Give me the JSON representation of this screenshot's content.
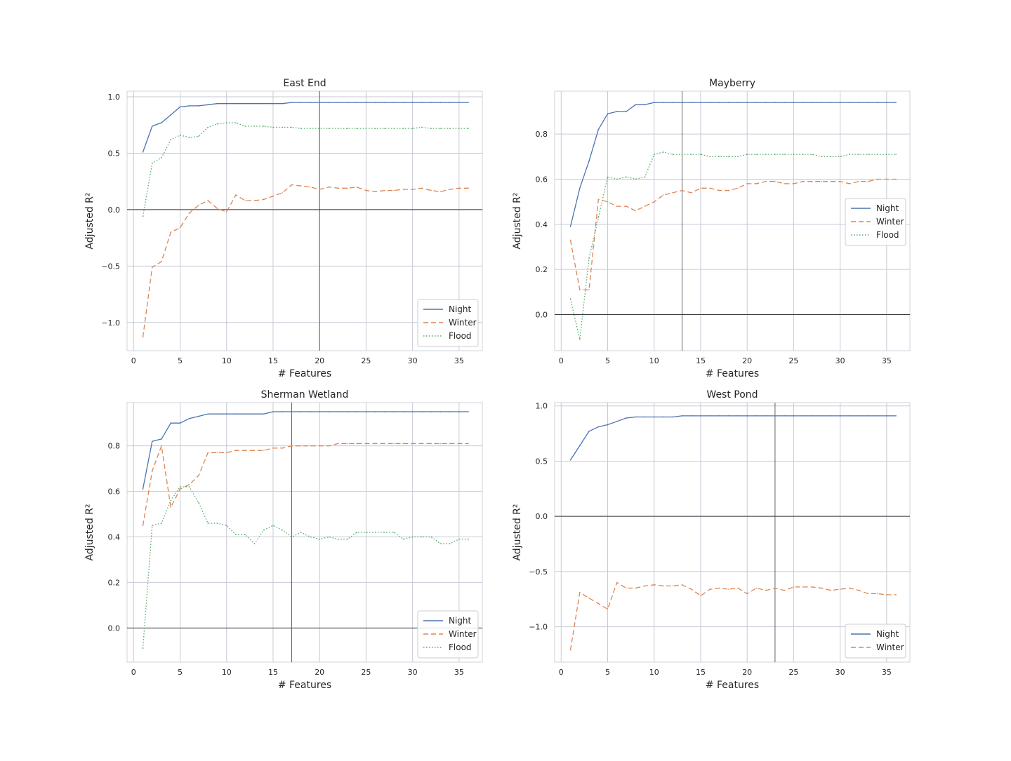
{
  "figure": {
    "axis_x_label": "# Features",
    "axis_y_label_main": "Adjusted R",
    "axis_y_label_sup": "2"
  },
  "colors": {
    "Night": "#4c72b0",
    "Winter": "#dd8452",
    "Flood": "#55a868",
    "grid": "#c7cad6",
    "zero_line": "#3a3a3a",
    "vline": "#3a3a3a",
    "frame": "#d0d3de"
  },
  "chart_data": [
    {
      "type": "line",
      "title": "East End",
      "xlabel": "# Features",
      "ylabel": "Adjusted R²",
      "xlim": [
        -0.7,
        37.5
      ],
      "ylim": [
        -1.25,
        1.05
      ],
      "xticks": [
        0,
        5,
        10,
        15,
        20,
        25,
        30,
        35
      ],
      "yticks": [
        -1.0,
        -0.5,
        0.0,
        0.5,
        1.0
      ],
      "ytick_labels": [
        "−1.0",
        "−0.5",
        "0.0",
        "0.5",
        "1.0"
      ],
      "grid": true,
      "hline": 0,
      "vline": 20,
      "legend_position": "lower-right",
      "x": [
        1,
        2,
        3,
        4,
        5,
        6,
        7,
        8,
        9,
        10,
        11,
        12,
        13,
        14,
        15,
        16,
        17,
        18,
        19,
        20,
        21,
        22,
        23,
        24,
        25,
        26,
        27,
        28,
        29,
        30,
        31,
        32,
        33,
        34,
        35,
        36
      ],
      "series": [
        {
          "name": "Night",
          "style": "solid",
          "values": [
            0.51,
            0.74,
            0.77,
            0.84,
            0.91,
            0.92,
            0.92,
            0.93,
            0.94,
            0.94,
            0.94,
            0.94,
            0.94,
            0.94,
            0.94,
            0.94,
            0.95,
            0.95,
            0.95,
            0.95,
            0.95,
            0.95,
            0.95,
            0.95,
            0.95,
            0.95,
            0.95,
            0.95,
            0.95,
            0.95,
            0.95,
            0.95,
            0.95,
            0.95,
            0.95,
            0.95
          ]
        },
        {
          "name": "Winter",
          "style": "dashed",
          "values": [
            -1.13,
            -0.51,
            -0.46,
            -0.2,
            -0.16,
            -0.03,
            0.04,
            0.08,
            0.01,
            -0.02,
            0.13,
            0.08,
            0.08,
            0.09,
            0.12,
            0.15,
            0.22,
            0.21,
            0.2,
            0.18,
            0.2,
            0.19,
            0.19,
            0.2,
            0.17,
            0.16,
            0.17,
            0.17,
            0.18,
            0.18,
            0.19,
            0.17,
            0.16,
            0.18,
            0.19,
            0.19
          ]
        },
        {
          "name": "Flood",
          "style": "dotted",
          "values": [
            -0.06,
            0.41,
            0.46,
            0.62,
            0.66,
            0.64,
            0.65,
            0.73,
            0.76,
            0.77,
            0.77,
            0.74,
            0.74,
            0.74,
            0.73,
            0.73,
            0.73,
            0.72,
            0.72,
            0.72,
            0.72,
            0.72,
            0.72,
            0.72,
            0.72,
            0.72,
            0.72,
            0.72,
            0.72,
            0.72,
            0.73,
            0.72,
            0.72,
            0.72,
            0.72,
            0.72
          ]
        }
      ]
    },
    {
      "type": "line",
      "title": "Mayberry",
      "xlabel": "# Features",
      "ylabel": "Adjusted R²",
      "xlim": [
        -0.7,
        37.5
      ],
      "ylim": [
        -0.16,
        0.99
      ],
      "xticks": [
        0,
        5,
        10,
        15,
        20,
        25,
        30,
        35
      ],
      "yticks": [
        0.0,
        0.2,
        0.4,
        0.6,
        0.8
      ],
      "ytick_labels": [
        "0.0",
        "0.2",
        "0.4",
        "0.6",
        "0.8"
      ],
      "grid": true,
      "hline": 0,
      "vline": 13,
      "legend_position": "center-right",
      "x": [
        1,
        2,
        3,
        4,
        5,
        6,
        7,
        8,
        9,
        10,
        11,
        12,
        13,
        14,
        15,
        16,
        17,
        18,
        19,
        20,
        21,
        22,
        23,
        24,
        25,
        26,
        27,
        28,
        29,
        30,
        31,
        32,
        33,
        34,
        35,
        36
      ],
      "series": [
        {
          "name": "Night",
          "style": "solid",
          "values": [
            0.39,
            0.56,
            0.68,
            0.82,
            0.89,
            0.9,
            0.9,
            0.93,
            0.93,
            0.94,
            0.94,
            0.94,
            0.94,
            0.94,
            0.94,
            0.94,
            0.94,
            0.94,
            0.94,
            0.94,
            0.94,
            0.94,
            0.94,
            0.94,
            0.94,
            0.94,
            0.94,
            0.94,
            0.94,
            0.94,
            0.94,
            0.94,
            0.94,
            0.94,
            0.94,
            0.94
          ]
        },
        {
          "name": "Winter",
          "style": "dashed",
          "values": [
            0.33,
            0.11,
            0.11,
            0.51,
            0.5,
            0.48,
            0.48,
            0.46,
            0.48,
            0.5,
            0.53,
            0.54,
            0.55,
            0.54,
            0.56,
            0.56,
            0.55,
            0.55,
            0.56,
            0.58,
            0.58,
            0.59,
            0.59,
            0.58,
            0.58,
            0.59,
            0.59,
            0.59,
            0.59,
            0.59,
            0.58,
            0.59,
            0.59,
            0.6,
            0.6,
            0.6
          ]
        },
        {
          "name": "Flood",
          "style": "dotted",
          "values": [
            0.07,
            -0.11,
            0.25,
            0.43,
            0.61,
            0.6,
            0.61,
            0.6,
            0.61,
            0.71,
            0.72,
            0.71,
            0.71,
            0.71,
            0.71,
            0.7,
            0.7,
            0.7,
            0.7,
            0.71,
            0.71,
            0.71,
            0.71,
            0.71,
            0.71,
            0.71,
            0.71,
            0.7,
            0.7,
            0.7,
            0.71,
            0.71,
            0.71,
            0.71,
            0.71,
            0.71
          ]
        }
      ]
    },
    {
      "type": "line",
      "title": "Sherman Wetland",
      "xlabel": "# Features",
      "ylabel": "Adjusted R²",
      "xlim": [
        -0.7,
        37.5
      ],
      "ylim": [
        -0.15,
        0.99
      ],
      "xticks": [
        0,
        5,
        10,
        15,
        20,
        25,
        30,
        35
      ],
      "yticks": [
        0.0,
        0.2,
        0.4,
        0.6,
        0.8
      ],
      "ytick_labels": [
        "0.0",
        "0.2",
        "0.4",
        "0.6",
        "0.8"
      ],
      "grid": true,
      "hline": 0,
      "vline": 17,
      "legend_position": "lower-right",
      "x": [
        1,
        2,
        3,
        4,
        5,
        6,
        7,
        8,
        9,
        10,
        11,
        12,
        13,
        14,
        15,
        16,
        17,
        18,
        19,
        20,
        21,
        22,
        23,
        24,
        25,
        26,
        27,
        28,
        29,
        30,
        31,
        32,
        33,
        34,
        35,
        36
      ],
      "series": [
        {
          "name": "Night",
          "style": "solid",
          "values": [
            0.61,
            0.82,
            0.83,
            0.9,
            0.9,
            0.92,
            0.93,
            0.94,
            0.94,
            0.94,
            0.94,
            0.94,
            0.94,
            0.94,
            0.95,
            0.95,
            0.95,
            0.95,
            0.95,
            0.95,
            0.95,
            0.95,
            0.95,
            0.95,
            0.95,
            0.95,
            0.95,
            0.95,
            0.95,
            0.95,
            0.95,
            0.95,
            0.95,
            0.95,
            0.95,
            0.95
          ]
        },
        {
          "name": "Winter",
          "style": "dashed",
          "values": [
            0.45,
            0.69,
            0.8,
            0.53,
            0.61,
            0.63,
            0.67,
            0.77,
            0.77,
            0.77,
            0.78,
            0.78,
            0.78,
            0.78,
            0.79,
            0.79,
            0.8,
            0.8,
            0.8,
            0.8,
            0.8,
            0.81,
            0.81,
            0.81,
            0.81,
            0.81,
            0.81,
            0.81,
            0.81,
            0.81,
            0.81,
            0.81,
            0.81,
            0.81,
            0.81,
            0.81
          ]
        },
        {
          "name": "Flood",
          "style": "dotted",
          "values": [
            -0.09,
            0.45,
            0.46,
            0.56,
            0.62,
            0.62,
            0.55,
            0.46,
            0.46,
            0.45,
            0.41,
            0.41,
            0.37,
            0.43,
            0.45,
            0.43,
            0.4,
            0.42,
            0.4,
            0.39,
            0.4,
            0.39,
            0.39,
            0.42,
            0.42,
            0.42,
            0.42,
            0.42,
            0.39,
            0.4,
            0.4,
            0.4,
            0.37,
            0.37,
            0.39,
            0.39
          ]
        }
      ]
    },
    {
      "type": "line",
      "title": "West Pond",
      "xlabel": "# Features",
      "ylabel": "Adjusted R²",
      "xlim": [
        -0.7,
        37.5
      ],
      "ylim": [
        -1.32,
        1.03
      ],
      "xticks": [
        0,
        5,
        10,
        15,
        20,
        25,
        30,
        35
      ],
      "yticks": [
        -1.0,
        -0.5,
        0.0,
        0.5,
        1.0
      ],
      "ytick_labels": [
        "−1.0",
        "−0.5",
        "0.0",
        "0.5",
        "1.0"
      ],
      "grid": true,
      "hline": 0,
      "vline": 23,
      "legend_position": "lower-right",
      "x": [
        1,
        2,
        3,
        4,
        5,
        6,
        7,
        8,
        9,
        10,
        11,
        12,
        13,
        14,
        15,
        16,
        17,
        18,
        19,
        20,
        21,
        22,
        23,
        24,
        25,
        26,
        27,
        28,
        29,
        30,
        31,
        32,
        33,
        34,
        35,
        36
      ],
      "series": [
        {
          "name": "Night",
          "style": "solid",
          "values": [
            0.51,
            0.64,
            0.77,
            0.81,
            0.83,
            0.86,
            0.89,
            0.9,
            0.9,
            0.9,
            0.9,
            0.9,
            0.91,
            0.91,
            0.91,
            0.91,
            0.91,
            0.91,
            0.91,
            0.91,
            0.91,
            0.91,
            0.91,
            0.91,
            0.91,
            0.91,
            0.91,
            0.91,
            0.91,
            0.91,
            0.91,
            0.91,
            0.91,
            0.91,
            0.91,
            0.91
          ]
        },
        {
          "name": "Winter",
          "style": "dashed",
          "values": [
            -1.21,
            -0.69,
            -0.74,
            -0.79,
            -0.84,
            -0.6,
            -0.65,
            -0.65,
            -0.63,
            -0.62,
            -0.63,
            -0.63,
            -0.62,
            -0.66,
            -0.72,
            -0.66,
            -0.65,
            -0.66,
            -0.65,
            -0.7,
            -0.65,
            -0.67,
            -0.65,
            -0.67,
            -0.64,
            -0.64,
            -0.64,
            -0.65,
            -0.67,
            -0.66,
            -0.65,
            -0.67,
            -0.7,
            -0.7,
            -0.71,
            -0.71
          ]
        }
      ]
    }
  ]
}
